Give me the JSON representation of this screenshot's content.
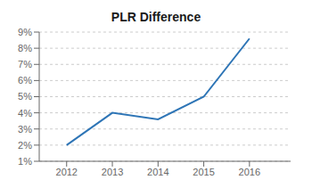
{
  "chart_data": {
    "type": "line",
    "title": "PLR Difference",
    "x": [
      2012,
      2013,
      2014,
      2015,
      2016
    ],
    "values": [
      0.02,
      0.04,
      0.036,
      0.05,
      0.086
    ],
    "color": "#2e75b6",
    "xlim": [
      2011.4,
      2016.9
    ],
    "xticks": [
      2012,
      2013,
      2014,
      2015,
      2016
    ],
    "ylim": [
      0.01,
      0.09
    ],
    "yticks": [
      {
        "value": 0.01,
        "label": "1%"
      },
      {
        "value": 0.02,
        "label": "2%"
      },
      {
        "value": 0.03,
        "label": "3%"
      },
      {
        "value": 0.04,
        "label": "4%"
      },
      {
        "value": 0.05,
        "label": "5%"
      },
      {
        "value": 0.06,
        "label": "6%"
      },
      {
        "value": 0.07,
        "label": "7%"
      },
      {
        "value": 0.08,
        "label": "8%"
      },
      {
        "value": 0.09,
        "label": "9%"
      }
    ],
    "grid": "y"
  }
}
